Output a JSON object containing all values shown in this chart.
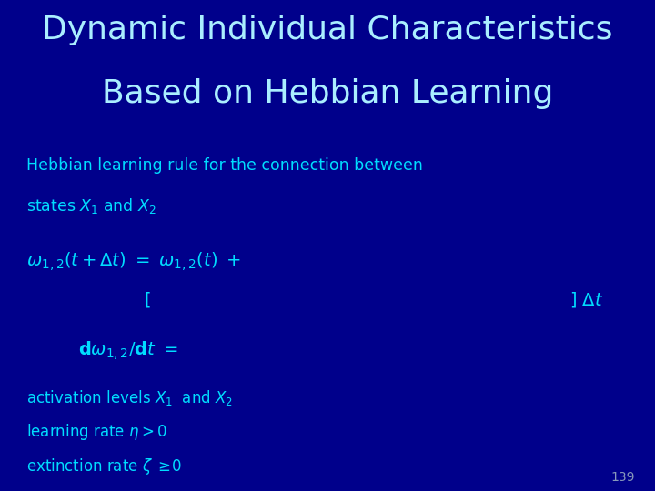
{
  "background_color": "#00008B",
  "title_line1": "Dynamic Individual Characteristics",
  "title_line2": "Based on Hebbian Learning",
  "title_color": "#AAEEFF",
  "title_fontsize": 26,
  "body_color": "#00DDFF",
  "slide_number": "139",
  "slide_number_color": "#8899BB"
}
